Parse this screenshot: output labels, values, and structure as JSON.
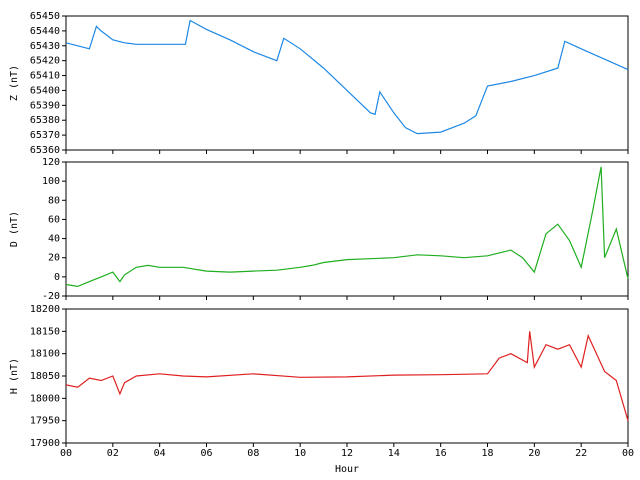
{
  "chart_data": [
    {
      "type": "line",
      "ylabel": "Z (nT)",
      "xlim": [
        0,
        24
      ],
      "ylim": [
        65360,
        65450
      ],
      "yticks": [
        65360,
        65370,
        65380,
        65390,
        65400,
        65410,
        65420,
        65430,
        65440,
        65450
      ],
      "series": [
        {
          "color": "#1e88e5",
          "x": [
            0,
            0.5,
            1,
            1.3,
            1.5,
            2,
            2.5,
            3,
            4,
            5.1,
            5.3,
            6,
            7,
            8,
            9,
            9.3,
            10,
            11,
            12,
            13,
            13.2,
            13.4,
            14,
            14.5,
            15,
            16,
            17,
            17.5,
            18,
            19,
            20,
            21,
            21.3,
            22,
            23,
            24
          ],
          "values": [
            65432,
            65430,
            65428,
            65443,
            65440,
            65434,
            65432,
            65431,
            65431,
            65431,
            65447,
            65441,
            65434,
            65426,
            65420,
            65435,
            65428,
            65415,
            65400,
            65385,
            65384,
            65399,
            65385,
            65375,
            65371,
            65372,
            65378,
            65383,
            65403,
            65406,
            65410,
            65415,
            65433,
            65428,
            65421,
            65414
          ]
        }
      ]
    },
    {
      "type": "line",
      "ylabel": "D (nT)",
      "xlim": [
        0,
        24
      ],
      "ylim": [
        -20,
        120
      ],
      "yticks": [
        -20,
        0,
        20,
        40,
        60,
        80,
        100,
        120
      ],
      "series": [
        {
          "color": "#1fae1f",
          "x": [
            0,
            0.5,
            1,
            1.5,
            2,
            2.3,
            2.5,
            3,
            3.5,
            4,
            5,
            6,
            7,
            8,
            9,
            10,
            10.5,
            11,
            12,
            13,
            14,
            15,
            16,
            17,
            18,
            18.5,
            19,
            19.5,
            20,
            20.5,
            21,
            21.5,
            22,
            22.5,
            22.85,
            23,
            23.5,
            24
          ],
          "values": [
            -8,
            -10,
            -5,
            0,
            5,
            -5,
            2,
            10,
            12,
            10,
            10,
            6,
            5,
            6,
            7,
            10,
            12,
            15,
            18,
            19,
            20,
            23,
            22,
            20,
            22,
            25,
            28,
            20,
            5,
            45,
            55,
            38,
            10,
            70,
            115,
            20,
            50,
            -2
          ]
        }
      ]
    },
    {
      "type": "line",
      "ylabel": "H (nT)",
      "xlabel": "Hour",
      "xlim": [
        0,
        24
      ],
      "ylim": [
        17900,
        18200
      ],
      "xticks": [
        {
          "value": 0,
          "label": "00"
        },
        {
          "value": 2,
          "label": "02"
        },
        {
          "value": 4,
          "label": "04"
        },
        {
          "value": 6,
          "label": "06"
        },
        {
          "value": 8,
          "label": "08"
        },
        10,
        12,
        14,
        16,
        18,
        20,
        22,
        {
          "value": 24,
          "label": "00"
        }
      ],
      "yticks": [
        17900,
        17950,
        18000,
        18050,
        18100,
        18150,
        18200
      ],
      "series": [
        {
          "color": "#e02020",
          "x": [
            0,
            0.5,
            1,
            1.5,
            2,
            2.3,
            2.5,
            3,
            4,
            5,
            6,
            8,
            10,
            12,
            14,
            16,
            18,
            18.5,
            19,
            19.7,
            19.8,
            20,
            20.5,
            21,
            21.5,
            22,
            22.3,
            23,
            23.5,
            24
          ],
          "values": [
            18030,
            18025,
            18045,
            18040,
            18050,
            18010,
            18035,
            18050,
            18055,
            18050,
            18048,
            18055,
            18047,
            18048,
            18052,
            18053,
            18055,
            18090,
            18100,
            18080,
            18150,
            18070,
            18120,
            18110,
            18120,
            18070,
            18140,
            18060,
            18040,
            17950
          ]
        }
      ]
    }
  ]
}
